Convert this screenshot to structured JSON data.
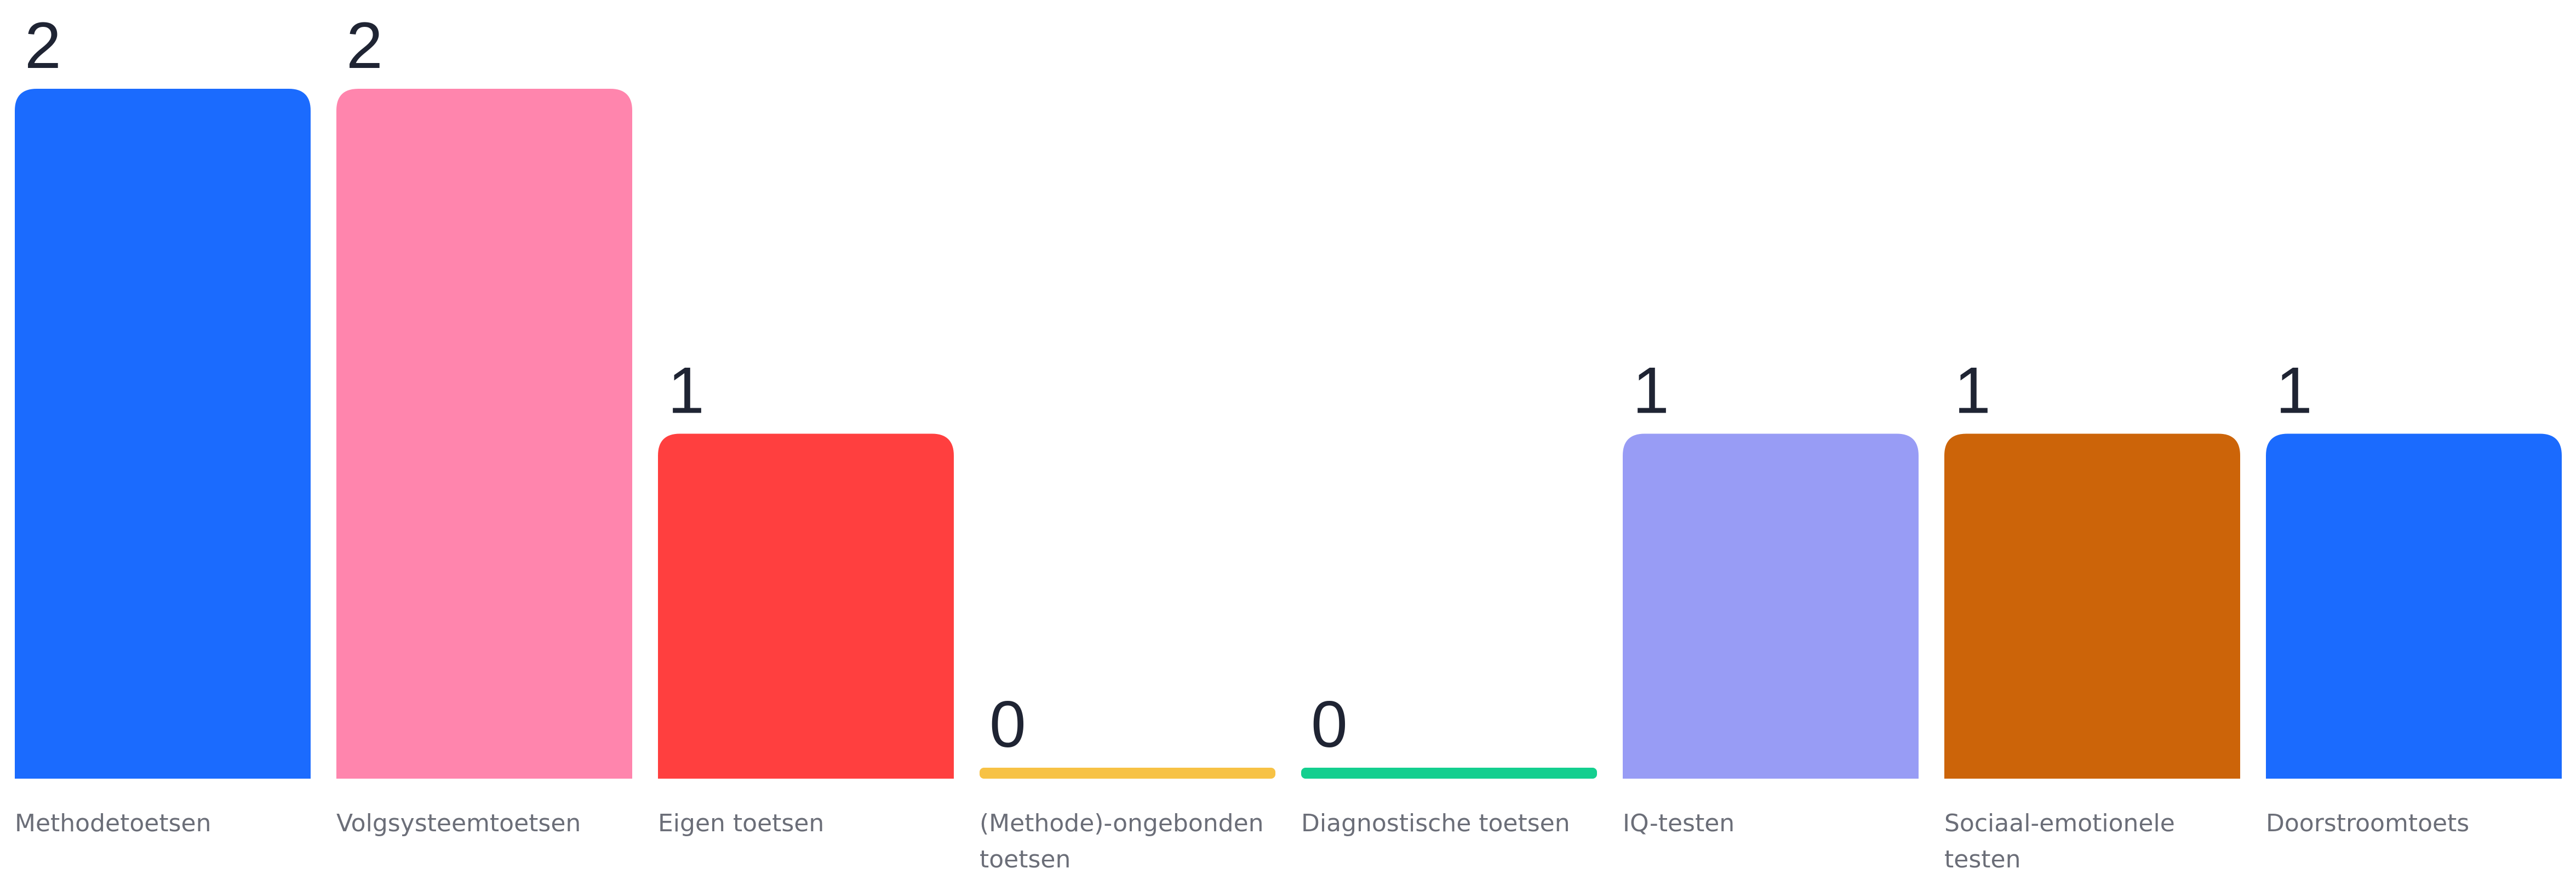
{
  "chart_data": {
    "type": "bar",
    "title": "",
    "xlabel": "",
    "ylabel": "",
    "ylim": [
      0,
      2
    ],
    "grid": false,
    "categories": [
      "Methodetoetsen",
      "Volgsysteemtoetsen",
      "Eigen toetsen",
      "(Methode)-ongebonden toetsen",
      "Diagnostische toetsen",
      "IQ-testen",
      "Sociaal-emotionele testen",
      "Doorstroomtoets"
    ],
    "values": [
      2,
      2,
      1,
      0,
      0,
      1,
      1,
      1
    ],
    "colors": [
      "#1b6bfe",
      "#ff85ad",
      "#ff3f3f",
      "#f7c245",
      "#14cf8f",
      "#989cf5",
      "#cc6409",
      "#1b6bfe"
    ]
  }
}
